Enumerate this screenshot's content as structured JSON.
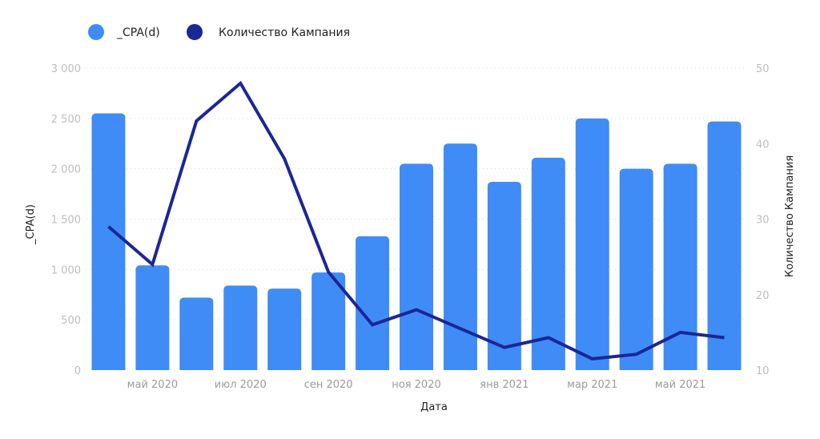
{
  "chart_data": {
    "type": "bar",
    "x_axis": {
      "label": "Дата",
      "tick_labels": [
        "май 2020",
        "июл 2020",
        "сен 2020",
        "ноя 2020",
        "янв 2021",
        "мар 2021",
        "май 2021"
      ]
    },
    "categories": [
      "2020-04",
      "2020-05",
      "2020-06",
      "2020-07",
      "2020-08",
      "2020-09",
      "2020-10",
      "2020-11",
      "2020-12",
      "2021-01",
      "2021-02",
      "2021-03",
      "2021-04",
      "2021-05",
      "2021-06"
    ],
    "y_left": {
      "label": "_CPA(d)",
      "range": [
        0,
        3000
      ],
      "ticks": [
        "0",
        "500",
        "1 000",
        "1 500",
        "2 000",
        "2 500",
        "3 000"
      ]
    },
    "y_right": {
      "label": "Количество Кампания",
      "range": [
        10,
        50
      ],
      "ticks": [
        "10",
        "20",
        "30",
        "40",
        "50"
      ]
    },
    "series": [
      {
        "name": "_CPA(d)",
        "kind": "bar",
        "axis": "left",
        "color": "#3f8cf6",
        "values": [
          2550,
          1040,
          720,
          840,
          810,
          970,
          1330,
          2050,
          2250,
          1870,
          2110,
          2500,
          2000,
          2050,
          2470
        ]
      },
      {
        "name": "Количество Кампания",
        "kind": "line",
        "axis": "right",
        "color": "#1b2697",
        "values": [
          29,
          24,
          43,
          48,
          38,
          23,
          16,
          18,
          15.5,
          13,
          14.3,
          11.5,
          12.1,
          15,
          14.3
        ]
      }
    ],
    "legend": "top-left",
    "grid": true
  }
}
